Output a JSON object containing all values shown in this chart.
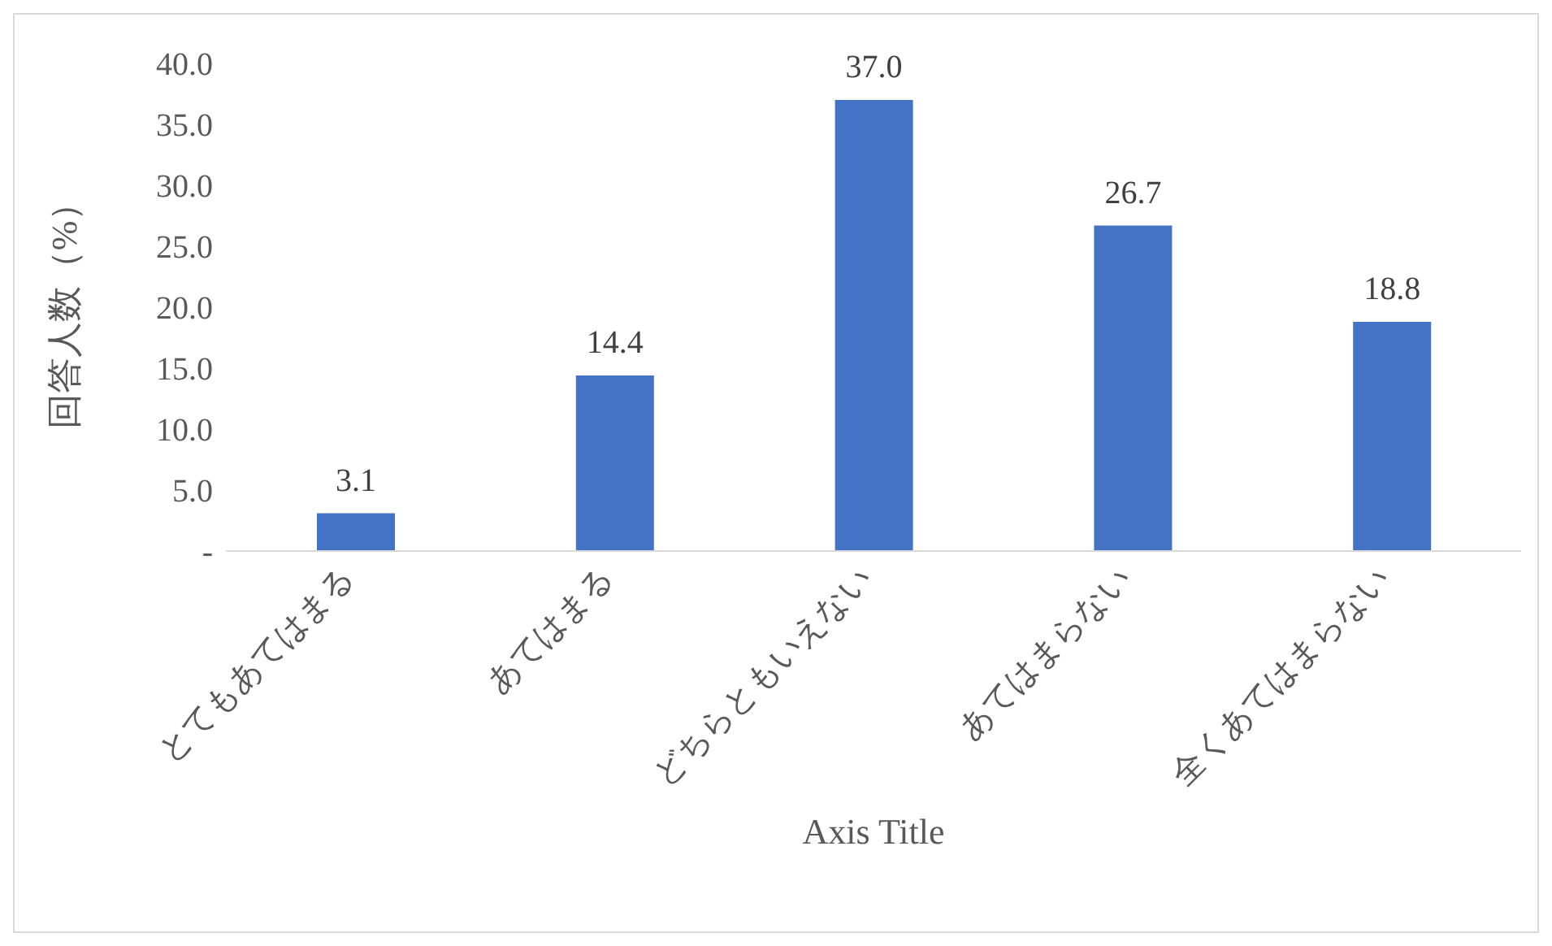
{
  "chart_data": {
    "type": "bar",
    "ylabel": "回答人数（%）",
    "xlabel": "Axis Title",
    "categories": [
      "とてもあてはまる",
      "あてはまる",
      "どちらともいえない",
      "あてはまらない",
      "全くあてはまらない"
    ],
    "values": [
      3.1,
      14.4,
      37.0,
      26.7,
      18.8
    ],
    "value_labels": [
      "3.1",
      "14.4",
      "37.0",
      "26.7",
      "18.8"
    ],
    "color": "#4472c4",
    "ylim": [
      0,
      40
    ],
    "yticks": [
      {
        "value": 0,
        "label": "-"
      },
      {
        "value": 5,
        "label": "5.0"
      },
      {
        "value": 10,
        "label": "10.0"
      },
      {
        "value": 15,
        "label": "15.0"
      },
      {
        "value": 20,
        "label": "20.0"
      },
      {
        "value": 25,
        "label": "25.0"
      },
      {
        "value": 30,
        "label": "30.0"
      },
      {
        "value": 35,
        "label": "35.0"
      },
      {
        "value": 40,
        "label": "40.0"
      }
    ],
    "grid": false,
    "legend": false
  }
}
